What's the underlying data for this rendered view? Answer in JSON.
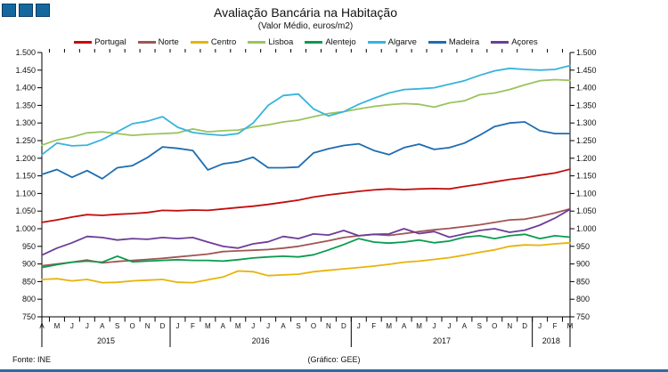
{
  "title": "Avaliação Bancária na Habitação",
  "subtitle": "(Valor Médio, euros/m2)",
  "footer": {
    "left": "Fonte: INE",
    "center": "(Gráfico: GEE)"
  },
  "logo": {
    "squares": 3
  },
  "colors": {
    "logo_fill": "#15689E",
    "logo_border": "#0C3C66",
    "bottom_bar": "#2C6BA4",
    "axis": "#000000"
  },
  "chart_data": {
    "type": "line",
    "title": "Avaliação Bancária na Habitação",
    "subtitle": "(Valor Médio, euros/m2)",
    "ylabel": "euros/m2",
    "ylim": [
      750,
      1500
    ],
    "ytick_step": 50,
    "ytick_labels": [
      "750",
      "800",
      "850",
      "900",
      "950",
      "1.000",
      "1.050",
      "1.100",
      "1.150",
      "1.200",
      "1.250",
      "1.300",
      "1.350",
      "1.400",
      "1.450",
      "1.500"
    ],
    "grid": false,
    "legend_position": "top",
    "dual_y_axis": true,
    "x_months": [
      "A",
      "M",
      "J",
      "J",
      "A",
      "S",
      "O",
      "N",
      "D",
      "J",
      "F",
      "M",
      "A",
      "M",
      "J",
      "J",
      "A",
      "S",
      "O",
      "N",
      "D",
      "J",
      "F",
      "M",
      "A",
      "M",
      "J",
      "J",
      "A",
      "S",
      "O",
      "N",
      "D",
      "J",
      "F",
      "M"
    ],
    "years": [
      {
        "label": "2015",
        "span": [
          0,
          8
        ]
      },
      {
        "label": "2016",
        "span": [
          9,
          20
        ]
      },
      {
        "label": "2017",
        "span": [
          21,
          32
        ]
      },
      {
        "label": "2018",
        "span": [
          33,
          35
        ]
      }
    ],
    "series": [
      {
        "name": "Portugal",
        "color": "#C30D0D",
        "values": [
          1018,
          1025,
          1033,
          1040,
          1038,
          1041,
          1043,
          1046,
          1052,
          1051,
          1053,
          1052,
          1056,
          1060,
          1064,
          1069,
          1075,
          1081,
          1090,
          1096,
          1101,
          1106,
          1110,
          1113,
          1111,
          1113,
          1114,
          1113,
          1120,
          1126,
          1133,
          1140,
          1145,
          1152,
          1158,
          1169
        ]
      },
      {
        "name": "Norte",
        "color": "#A05552",
        "values": [
          895,
          900,
          905,
          911,
          903,
          907,
          910,
          913,
          916,
          920,
          924,
          928,
          935,
          937,
          939,
          941,
          945,
          950,
          958,
          966,
          975,
          980,
          984,
          981,
          986,
          992,
          997,
          1001,
          1006,
          1011,
          1018,
          1025,
          1027,
          1035,
          1045,
          1056
        ]
      },
      {
        "name": "Centro",
        "color": "#E7B40A",
        "values": [
          856,
          858,
          852,
          856,
          847,
          848,
          852,
          854,
          856,
          848,
          847,
          855,
          863,
          880,
          878,
          867,
          869,
          871,
          878,
          882,
          886,
          890,
          894,
          899,
          905,
          908,
          913,
          918,
          925,
          933,
          940,
          950,
          954,
          953,
          957,
          960
        ]
      },
      {
        "name": "Lisboa",
        "color": "#9CC35E",
        "values": [
          1237,
          1252,
          1260,
          1272,
          1275,
          1270,
          1265,
          1268,
          1270,
          1272,
          1283,
          1275,
          1278,
          1280,
          1289,
          1295,
          1303,
          1308,
          1318,
          1327,
          1332,
          1340,
          1347,
          1352,
          1355,
          1353,
          1345,
          1357,
          1363,
          1380,
          1385,
          1395,
          1408,
          1420,
          1423,
          1421
        ]
      },
      {
        "name": "Alentejo",
        "color": "#0A9B4F",
        "values": [
          890,
          898,
          905,
          908,
          905,
          922,
          906,
          908,
          910,
          912,
          910,
          910,
          908,
          912,
          917,
          920,
          922,
          920,
          926,
          940,
          955,
          972,
          962,
          959,
          962,
          968,
          960,
          965,
          976,
          980,
          972,
          980,
          984,
          972,
          980,
          976
        ]
      },
      {
        "name": "Algarve",
        "color": "#38B3DC",
        "values": [
          1210,
          1243,
          1235,
          1237,
          1253,
          1275,
          1298,
          1305,
          1318,
          1288,
          1273,
          1268,
          1265,
          1270,
          1300,
          1350,
          1378,
          1382,
          1340,
          1320,
          1332,
          1353,
          1370,
          1385,
          1395,
          1397,
          1400,
          1410,
          1420,
          1435,
          1448,
          1455,
          1452,
          1450,
          1452,
          1463
        ]
      },
      {
        "name": "Madeira",
        "color": "#1E6CB0",
        "values": [
          1154,
          1168,
          1146,
          1165,
          1142,
          1173,
          1179,
          1202,
          1232,
          1228,
          1222,
          1167,
          1184,
          1190,
          1203,
          1173,
          1173,
          1175,
          1215,
          1227,
          1236,
          1241,
          1222,
          1210,
          1230,
          1240,
          1225,
          1230,
          1243,
          1265,
          1290,
          1300,
          1303,
          1278,
          1270,
          1270
        ]
      },
      {
        "name": "Açores",
        "color": "#6C3D99",
        "values": [
          925,
          945,
          960,
          978,
          975,
          968,
          972,
          970,
          975,
          972,
          975,
          962,
          950,
          945,
          957,
          963,
          978,
          972,
          985,
          982,
          995,
          980,
          984,
          985,
          1000,
          986,
          992,
          976,
          985,
          995,
          1000,
          990,
          996,
          1010,
          1030,
          1055
        ]
      }
    ]
  }
}
